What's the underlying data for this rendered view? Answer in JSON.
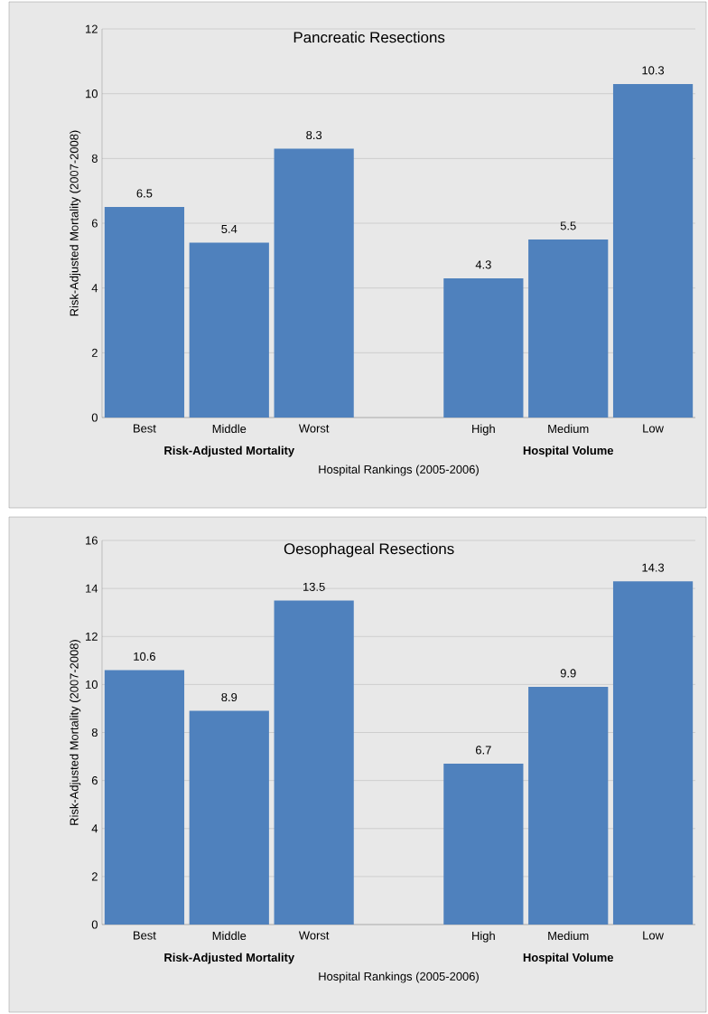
{
  "chart_data": [
    {
      "type": "bar",
      "title": "Pancreatic Resections",
      "xlabel": "Hospital Rankings (2005-2006)",
      "ylabel": "Risk-Adjusted Mortality (2007-2008)",
      "categories": [
        "Best",
        "Middle",
        "Worst",
        null,
        "High",
        "Medium",
        "Low"
      ],
      "values": [
        6.5,
        5.4,
        8.3,
        null,
        4.3,
        5.5,
        10.3
      ],
      "color": "#4f81bd",
      "ylim": [
        0,
        12
      ],
      "yticks": [
        0,
        2,
        4,
        6,
        8,
        10,
        12
      ],
      "grid": "y",
      "data_labels": true,
      "annotations": [
        "**Risk-Adjusted Mortality**",
        "**Hospital Volume**"
      ]
    },
    {
      "type": "bar",
      "title": "Oesophageal Resections",
      "xlabel": "Hospital Rankings (2005-2006)",
      "ylabel": "Risk-Adjusted Mortality (2007-2008)",
      "categories": [
        "Best",
        "Middle",
        "Worst",
        null,
        "High",
        "Medium",
        "Low"
      ],
      "values": [
        10.6,
        8.9,
        13.5,
        null,
        6.7,
        9.9,
        14.3
      ],
      "color": "#4f81bd",
      "ylim": [
        0,
        16
      ],
      "yticks": [
        0,
        2,
        4,
        6,
        8,
        10,
        12,
        14,
        16
      ],
      "grid": "y",
      "data_labels": true,
      "annotations": [
        "**Risk-Adjusted Mortality**",
        "**Hospital Volume**"
      ]
    }
  ]
}
